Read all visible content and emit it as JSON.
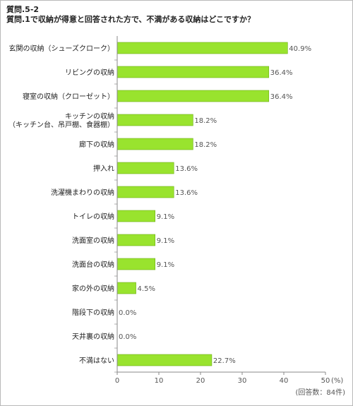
{
  "header": {
    "line1": "質問.5-2",
    "line2": "質問.1で収納が得意と回答された方で、不満がある収納はどこですか？"
  },
  "chart_data": {
    "type": "bar",
    "orientation": "horizontal",
    "categories": [
      [
        "玄関の収納（シューズクローク）"
      ],
      [
        "リビングの収納"
      ],
      [
        "寝室の収納（クローゼット）"
      ],
      [
        "キッチンの収納",
        "（キッチン台、吊戸棚、食器棚）"
      ],
      [
        "廊下の収納"
      ],
      [
        "押入れ"
      ],
      [
        "洗濯機まわりの収納"
      ],
      [
        "トイレの収納"
      ],
      [
        "洗面室の収納"
      ],
      [
        "洗面台の収納"
      ],
      [
        "家の外の収納"
      ],
      [
        "階段下の収納"
      ],
      [
        "天井裏の収納"
      ],
      [
        "不満はない"
      ]
    ],
    "values": [
      40.9,
      36.4,
      36.4,
      18.2,
      18.2,
      13.6,
      13.6,
      9.1,
      9.1,
      9.1,
      4.5,
      0.0,
      0.0,
      22.7
    ],
    "value_labels": [
      "40.9%",
      "36.4%",
      "36.4%",
      "18.2%",
      "18.2%",
      "13.6%",
      "13.6%",
      "9.1%",
      "9.1%",
      "9.1%",
      "4.5%",
      "0.0%",
      "0.0%",
      "22.7%"
    ],
    "xlim": [
      0,
      50
    ],
    "xticks": [
      "0",
      "10",
      "20",
      "30",
      "40",
      "50"
    ],
    "xunit": "(%)",
    "note": "(回答数：84件)",
    "bar_color": "#99e32e",
    "bar_border": "#6cad12",
    "grid": false
  }
}
